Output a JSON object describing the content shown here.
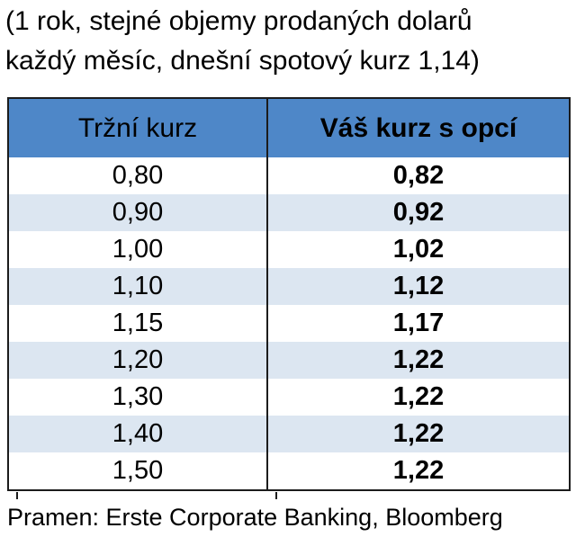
{
  "caption": {
    "line1": "(1 rok, stejné objemy prodaných dolarů",
    "line2": "každý měsíc, dnešní spotový kurz 1,14)"
  },
  "chart_data": {
    "type": "table",
    "title": "(1 rok, stejné objemy prodaných dolarů každý měsíc, dnešní spotový kurz 1,14)",
    "columns": [
      "Tržní kurz",
      "Váš kurz s opcí"
    ],
    "rows": [
      [
        "0,80",
        "0,82"
      ],
      [
        "0,90",
        "0,92"
      ],
      [
        "1,00",
        "1,02"
      ],
      [
        "1,10",
        "1,12"
      ],
      [
        "1,15",
        "1,17"
      ],
      [
        "1,20",
        "1,22"
      ],
      [
        "1,30",
        "1,22"
      ],
      [
        "1,40",
        "1,22"
      ],
      [
        "1,50",
        "1,22"
      ]
    ],
    "numeric": {
      "market_rate": [
        0.8,
        0.9,
        1.0,
        1.1,
        1.15,
        1.2,
        1.3,
        1.4,
        1.5
      ],
      "option_rate": [
        0.82,
        0.92,
        1.02,
        1.12,
        1.17,
        1.22,
        1.22,
        1.22,
        1.22
      ],
      "spot_rate_today": 1.14,
      "horizon": "1 rok"
    },
    "source": "Pramen: Erste Corporate Banking, Bloomberg"
  },
  "colors": {
    "header_bg": "#4e87c8",
    "stripe_bg": "#dce6f1",
    "border": "#1c1c1c",
    "text": "#000000"
  }
}
